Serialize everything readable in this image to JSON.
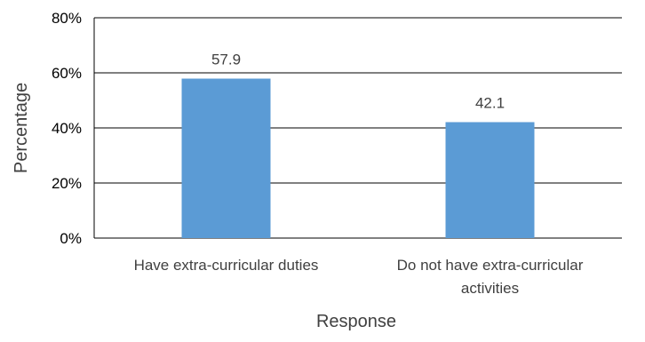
{
  "chart_data": {
    "type": "bar",
    "categories": [
      "Have extra-curricular duties",
      "Do not have extra-curricular activities"
    ],
    "category_label_lines": [
      [
        "Have extra-curricular duties"
      ],
      [
        "Do not have extra-curricular",
        "activities"
      ]
    ],
    "values": [
      57.9,
      42.1
    ],
    "data_labels": [
      "57.9",
      "42.1"
    ],
    "title": "",
    "xlabel": "Response",
    "ylabel": "Percentage",
    "ylim": [
      0,
      80
    ],
    "yticks": [
      0,
      20,
      40,
      60,
      80
    ],
    "ytick_labels": [
      "0%",
      "20%",
      "40%",
      "60%",
      "80%"
    ],
    "grid": true,
    "legend": "none",
    "bar_color": "#5b9bd5",
    "grid_color": "#000000",
    "text_color": "#404040"
  }
}
